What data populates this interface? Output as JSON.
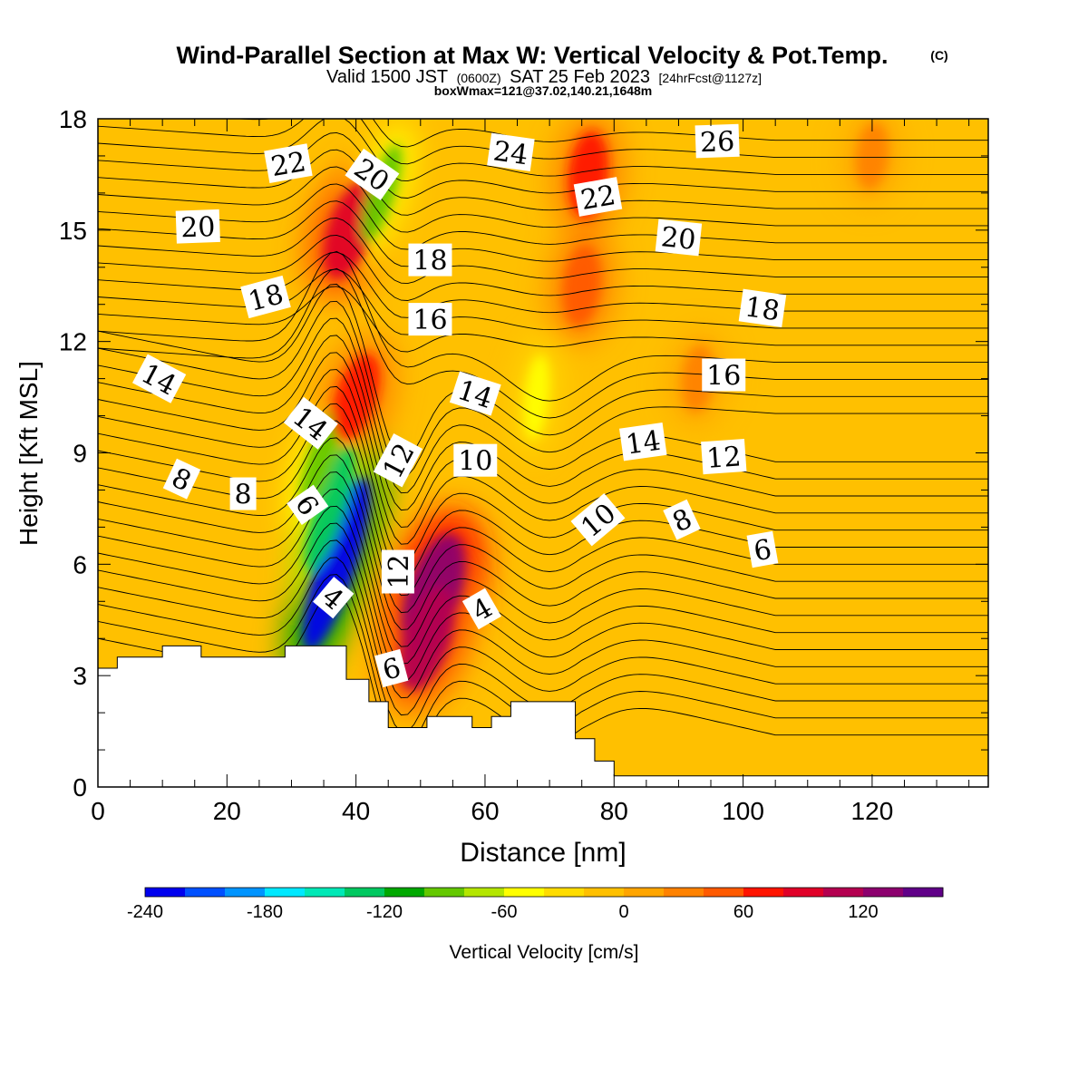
{
  "header": {
    "title": "Wind-Parallel Section at Max W: Vertical Velocity & Pot.Temp.",
    "copyright": "(C)",
    "subtitle_valid": "Valid 1500 JST",
    "subtitle_z": "(0600Z)",
    "subtitle_date": "SAT 25 Feb 2023",
    "subtitle_fcst": "[24hrFcst@1127z]",
    "boxline": "boxWmax=121@37.02,140.21,1648m"
  },
  "chart_data": {
    "type": "contour-section",
    "xlabel": "Distance [nm]",
    "ylabel": "Height [Kft MSL]",
    "xlim": [
      0,
      138
    ],
    "ylim": [
      0,
      18
    ],
    "xticks": [
      0,
      20,
      40,
      60,
      80,
      100,
      120
    ],
    "yticks": [
      0,
      3,
      6,
      9,
      12,
      15,
      18
    ],
    "fill_variable": "Vertical Velocity [cm/s]",
    "contour_variable": "Potential temperature",
    "colorbar": {
      "label": "Vertical Velocity [cm/s]",
      "ticks": [
        -240,
        -180,
        -120,
        -60,
        0,
        60,
        120
      ],
      "min": -240,
      "step": 20,
      "colors": [
        "#0000ee",
        "#0050ff",
        "#0094ff",
        "#00e8ff",
        "#00e8b6",
        "#00c860",
        "#00a800",
        "#64c800",
        "#b4e600",
        "#ffff00",
        "#ffdc00",
        "#ffc000",
        "#ffa500",
        "#ff8200",
        "#ff5a00",
        "#ff1400",
        "#e00028",
        "#b40050",
        "#8c006e",
        "#600088"
      ]
    },
    "terrain_kft": [
      [
        0,
        3.2
      ],
      [
        3,
        3.2
      ],
      [
        3,
        3.5
      ],
      [
        10,
        3.5
      ],
      [
        10,
        3.8
      ],
      [
        16,
        3.8
      ],
      [
        16,
        3.5
      ],
      [
        29,
        3.5
      ],
      [
        29,
        3.8
      ],
      [
        38.5,
        3.8
      ],
      [
        38.5,
        2.9
      ],
      [
        42,
        2.9
      ],
      [
        42,
        2.3
      ],
      [
        45,
        2.3
      ],
      [
        45,
        1.6
      ],
      [
        51,
        1.6
      ],
      [
        51,
        1.9
      ],
      [
        58,
        1.9
      ],
      [
        58,
        1.6
      ],
      [
        61,
        1.6
      ],
      [
        61,
        1.9
      ],
      [
        64,
        1.9
      ],
      [
        64,
        2.3
      ],
      [
        74,
        2.3
      ],
      [
        74,
        1.3
      ],
      [
        77,
        1.3
      ],
      [
        77,
        0.7
      ],
      [
        80,
        0.7
      ],
      [
        80,
        0.3
      ],
      [
        138,
        0.3
      ]
    ],
    "vertical_velocity_features": [
      {
        "x": 37,
        "y": 6.0,
        "value": -230
      },
      {
        "x": 36,
        "y": 7.5,
        "value": -140
      },
      {
        "x": 34.5,
        "y": 8.8,
        "value": -100
      },
      {
        "x": 40,
        "y": 10.5,
        "value": 70
      },
      {
        "x": 39,
        "y": 15,
        "value": 90
      },
      {
        "x": 52,
        "y": 5.2,
        "value": 130
      },
      {
        "x": 51,
        "y": 4.0,
        "value": 100
      },
      {
        "x": 75,
        "y": 13.5,
        "value": 55
      },
      {
        "x": 76,
        "y": 16.5,
        "value": 65
      },
      {
        "x": 44,
        "y": 16,
        "value": -90
      },
      {
        "x": 68,
        "y": 10.5,
        "value": -60
      },
      {
        "x": 93,
        "y": 11,
        "value": 30
      },
      {
        "x": 120,
        "y": 17,
        "value": 30
      }
    ],
    "contour_labels": [
      {
        "value": "22",
        "x": 29.5,
        "y": 16.8,
        "angle": -10
      },
      {
        "value": "20",
        "x": 42.5,
        "y": 16.5,
        "angle": 35
      },
      {
        "value": "24",
        "x": 64,
        "y": 17.1,
        "angle": 8
      },
      {
        "value": "26",
        "x": 96,
        "y": 17.4,
        "angle": -2
      },
      {
        "value": "20",
        "x": 15.5,
        "y": 15.1,
        "angle": -2
      },
      {
        "value": "22",
        "x": 77.5,
        "y": 15.9,
        "angle": -10
      },
      {
        "value": "20",
        "x": 90,
        "y": 14.8,
        "angle": 6
      },
      {
        "value": "18",
        "x": 51.5,
        "y": 14.2,
        "angle": 0
      },
      {
        "value": "18",
        "x": 26,
        "y": 13.2,
        "angle": -15
      },
      {
        "value": "18",
        "x": 103,
        "y": 12.9,
        "angle": 8
      },
      {
        "value": "16",
        "x": 51.5,
        "y": 12.6,
        "angle": 0
      },
      {
        "value": "14",
        "x": 9.5,
        "y": 11.0,
        "angle": 28
      },
      {
        "value": "16",
        "x": 97,
        "y": 11.1,
        "angle": 0
      },
      {
        "value": "14",
        "x": 58.5,
        "y": 10.6,
        "angle": 18
      },
      {
        "value": "14",
        "x": 33,
        "y": 9.8,
        "angle": 38
      },
      {
        "value": "14",
        "x": 84.5,
        "y": 9.3,
        "angle": -8
      },
      {
        "value": "12",
        "x": 46.5,
        "y": 8.8,
        "angle": -62
      },
      {
        "value": "10",
        "x": 58.5,
        "y": 8.8,
        "angle": 0
      },
      {
        "value": "12",
        "x": 97,
        "y": 8.9,
        "angle": -4
      },
      {
        "value": "8",
        "x": 13,
        "y": 8.3,
        "angle": 25
      },
      {
        "value": "8",
        "x": 22.5,
        "y": 7.9,
        "angle": 0
      },
      {
        "value": "6",
        "x": 32.5,
        "y": 7.6,
        "angle": 55
      },
      {
        "value": "10",
        "x": 77.5,
        "y": 7.2,
        "angle": -40
      },
      {
        "value": "8",
        "x": 90.5,
        "y": 7.2,
        "angle": -25
      },
      {
        "value": "6",
        "x": 103,
        "y": 6.4,
        "angle": -10
      },
      {
        "value": "12",
        "x": 46.5,
        "y": 5.8,
        "angle": -90
      },
      {
        "value": "4",
        "x": 36.5,
        "y": 5.1,
        "angle": 40
      },
      {
        "value": "4",
        "x": 59.5,
        "y": 4.8,
        "angle": -30
      },
      {
        "value": "6",
        "x": 45.5,
        "y": 3.2,
        "angle": -15
      }
    ]
  }
}
